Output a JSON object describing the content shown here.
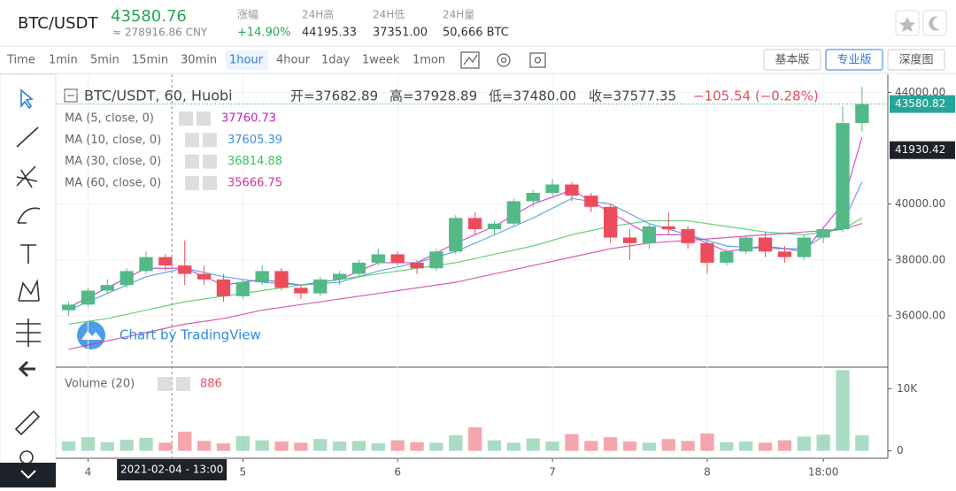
{
  "header": {
    "symbol": "BTC/USDT",
    "price": "43580.76",
    "cny": "≈ 278916.86 CNY",
    "stats": [
      {
        "label": "涨幅",
        "value": "+14.90%"
      },
      {
        "label": "24H高",
        "value": "44195.33"
      },
      {
        "label": "24H低",
        "value": "37351.00"
      },
      {
        "label": "24H量",
        "value": "50,666 BTC"
      }
    ]
  },
  "toolbar": {
    "intervals": [
      "Time",
      "1min",
      "5min",
      "15min",
      "30min",
      "1hour",
      "4hour",
      "1day",
      "1week",
      "1mon"
    ],
    "active_index": 5,
    "views": [
      "基本版",
      "专业版",
      "深度图"
    ],
    "active_view_index": 1
  },
  "watermark": "Chart by TradingView",
  "chart_data": {
    "type": "candlestick",
    "title": "BTC/USDT, 60, Huobi",
    "ohlc_labels": [
      "开=37682.89",
      "高=37928.89",
      "低=37480.00",
      "收=37577.35",
      "−105.54 (−0.28%)"
    ],
    "x": [
      -3,
      0,
      3,
      6,
      9,
      12,
      15,
      18,
      21,
      24,
      27,
      30,
      33,
      36,
      39,
      42,
      45,
      48,
      51,
      54,
      57,
      60,
      63,
      66,
      69,
      72,
      75,
      78,
      81,
      84,
      87,
      90,
      93,
      96,
      99,
      102,
      105,
      108,
      111,
      114,
      117,
      120
    ],
    "open": [
      36200,
      36400,
      36900,
      37100,
      37600,
      38100,
      37800,
      37500,
      37300,
      36700,
      37200,
      37600,
      37000,
      36800,
      37300,
      37500,
      37900,
      38200,
      37900,
      37700,
      38300,
      39500,
      39100,
      39300,
      40100,
      40400,
      40700,
      40300,
      39900,
      38800,
      38600,
      39200,
      39100,
      38600,
      37900,
      38300,
      38800,
      38300,
      38100,
      38800,
      39100,
      42900
    ],
    "high": [
      36500,
      37000,
      37300,
      37700,
      38300,
      38200,
      38700,
      37800,
      37500,
      37300,
      37800,
      37700,
      37100,
      37400,
      37600,
      38000,
      38400,
      38300,
      38000,
      38400,
      39600,
      39700,
      39400,
      40200,
      40500,
      40900,
      40800,
      40400,
      40000,
      39100,
      39300,
      39700,
      39200,
      38700,
      38400,
      38900,
      39000,
      38500,
      38900,
      39200,
      43500,
      44195
    ],
    "low": [
      36000,
      36300,
      36800,
      37000,
      37500,
      37600,
      37100,
      37100,
      36500,
      36600,
      37100,
      36900,
      36600,
      36700,
      37100,
      37400,
      37800,
      37800,
      37500,
      37600,
      38200,
      38900,
      38900,
      39200,
      39900,
      40300,
      40100,
      39700,
      38600,
      38000,
      38400,
      38900,
      38400,
      37500,
      37800,
      38200,
      38100,
      37900,
      38000,
      38600,
      39000,
      42600
    ],
    "close": [
      36400,
      36900,
      37100,
      37600,
      38100,
      37800,
      37500,
      37300,
      36700,
      37200,
      37600,
      37000,
      36800,
      37300,
      37500,
      37900,
      38200,
      37900,
      37700,
      38300,
      39500,
      39100,
      39300,
      40100,
      40400,
      40700,
      40300,
      39900,
      38800,
      38600,
      39200,
      39100,
      38600,
      37900,
      38300,
      38800,
      38300,
      38100,
      38800,
      39100,
      42900,
      43580.82
    ],
    "up_color": "#53b987",
    "down_color": "#eb4d5c",
    "xlim": [
      -5,
      124
    ],
    "xticks": [
      {
        "value": 0,
        "label": "4"
      },
      {
        "value": 24,
        "label": "5"
      },
      {
        "value": 48,
        "label": "6"
      },
      {
        "value": 72,
        "label": "7"
      },
      {
        "value": 96,
        "label": "8"
      },
      {
        "value": 114,
        "label": "18:00"
      }
    ],
    "ylim": [
      34160,
      44645
    ],
    "yticks": [
      {
        "value": 44000,
        "label": "44000.00"
      },
      {
        "value": 40000,
        "label": "40000.00"
      },
      {
        "value": 38000,
        "label": "38000.00"
      },
      {
        "value": 36000,
        "label": "36000.00"
      }
    ],
    "crosshair": {
      "x": 13,
      "label": "2021-02-04 - 13:00"
    },
    "ma_x": [
      -3,
      3,
      9,
      15,
      21,
      27,
      33,
      39,
      45,
      51,
      57,
      63,
      69,
      75,
      81,
      87,
      93,
      99,
      105,
      111,
      117,
      120
    ],
    "indicators": [
      {
        "name": "MA (5, close, 0)",
        "value": 37760.73,
        "color": "#c026c0",
        "values": [
          36300,
          37000,
          37700,
          37700,
          37100,
          37300,
          37100,
          37300,
          37900,
          37900,
          38600,
          39200,
          40000,
          40500,
          39700,
          38900,
          38900,
          38300,
          38500,
          38300,
          40000,
          42400
        ]
      },
      {
        "name": "MA (10, close, 0)",
        "value": 37605.39,
        "color": "#3f8ee0",
        "values": [
          36200,
          36800,
          37400,
          37700,
          37400,
          37200,
          37100,
          37200,
          37600,
          37900,
          38300,
          38900,
          39500,
          40200,
          40000,
          39300,
          38900,
          38500,
          38400,
          38400,
          39300,
          40800
        ]
      },
      {
        "name": "MA (30, close, 0)",
        "value": 36814.88,
        "color": "#3cc45a",
        "values": [
          35700,
          35900,
          36200,
          36500,
          36700,
          36900,
          37100,
          37300,
          37500,
          37700,
          37900,
          38200,
          38500,
          38900,
          39200,
          39400,
          39400,
          39200,
          39000,
          38900,
          39100,
          39500
        ]
      },
      {
        "name": "MA (60, close, 0)",
        "value": 35666.75,
        "color": "#d0359a",
        "values": [
          34800,
          35100,
          35400,
          35700,
          35900,
          36200,
          36400,
          36600,
          36800,
          37000,
          37200,
          37500,
          37800,
          38100,
          38400,
          38600,
          38700,
          38800,
          38900,
          39000,
          39100,
          39300
        ]
      }
    ],
    "price_lines": [
      {
        "value": 43580.82,
        "color": "#26a69a"
      },
      {
        "value": 41930.42,
        "color": "#1e2229"
      }
    ],
    "volume": {
      "name": "Volume (20)",
      "value": 886,
      "values": [
        1500,
        2200,
        1400,
        1800,
        2100,
        1300,
        3100,
        1600,
        1200,
        2400,
        1700,
        1500,
        1300,
        1900,
        1500,
        1600,
        1200,
        1700,
        1400,
        1300,
        2500,
        3800,
        1700,
        1300,
        2000,
        1500,
        2700,
        1600,
        2200,
        1500,
        1300,
        1900,
        1600,
        2800,
        1400,
        1500,
        1300,
        1700,
        2300,
        2600,
        13000,
        2500
      ],
      "ylim": [
        -1200,
        13500
      ],
      "yticks": [
        {
          "value": 10000,
          "label": "10K"
        },
        0
      ]
    }
  }
}
